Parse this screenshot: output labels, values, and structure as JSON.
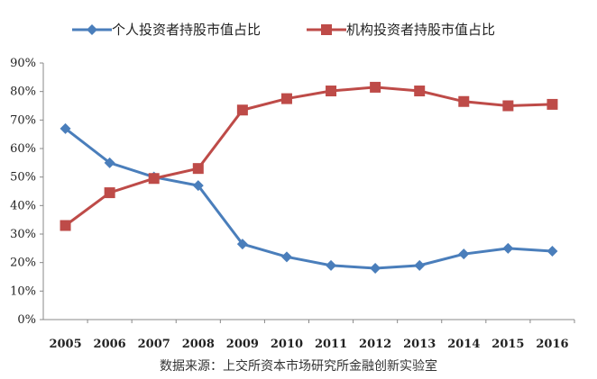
{
  "chart_data": {
    "type": "line",
    "title": "",
    "xlabel": "",
    "ylabel": "",
    "ylim": [
      0,
      90
    ],
    "yticks": [
      "0%",
      "10%",
      "20%",
      "30%",
      "40%",
      "50%",
      "60%",
      "70%",
      "80%",
      "90%"
    ],
    "categories": [
      "2005",
      "2006",
      "2007",
      "2008",
      "2009",
      "2010",
      "2011",
      "2012",
      "2013",
      "2014",
      "2015",
      "2016"
    ],
    "legend_position": "top",
    "series": [
      {
        "name": "个人投资者持股市值占比",
        "color": "#4a7ebb",
        "marker": "diamond",
        "values": [
          67,
          55,
          50,
          47,
          26.5,
          22,
          19,
          18,
          19,
          23,
          25,
          24
        ]
      },
      {
        "name": "机构投资者持股市值占比",
        "color": "#be4b48",
        "marker": "square",
        "values": [
          33,
          44.5,
          49.5,
          53,
          73.5,
          77.5,
          80.2,
          81.5,
          80.2,
          76.5,
          75,
          75.5
        ]
      }
    ],
    "source": "数据来源：上交所资本市场研究所金融创新实验室"
  }
}
